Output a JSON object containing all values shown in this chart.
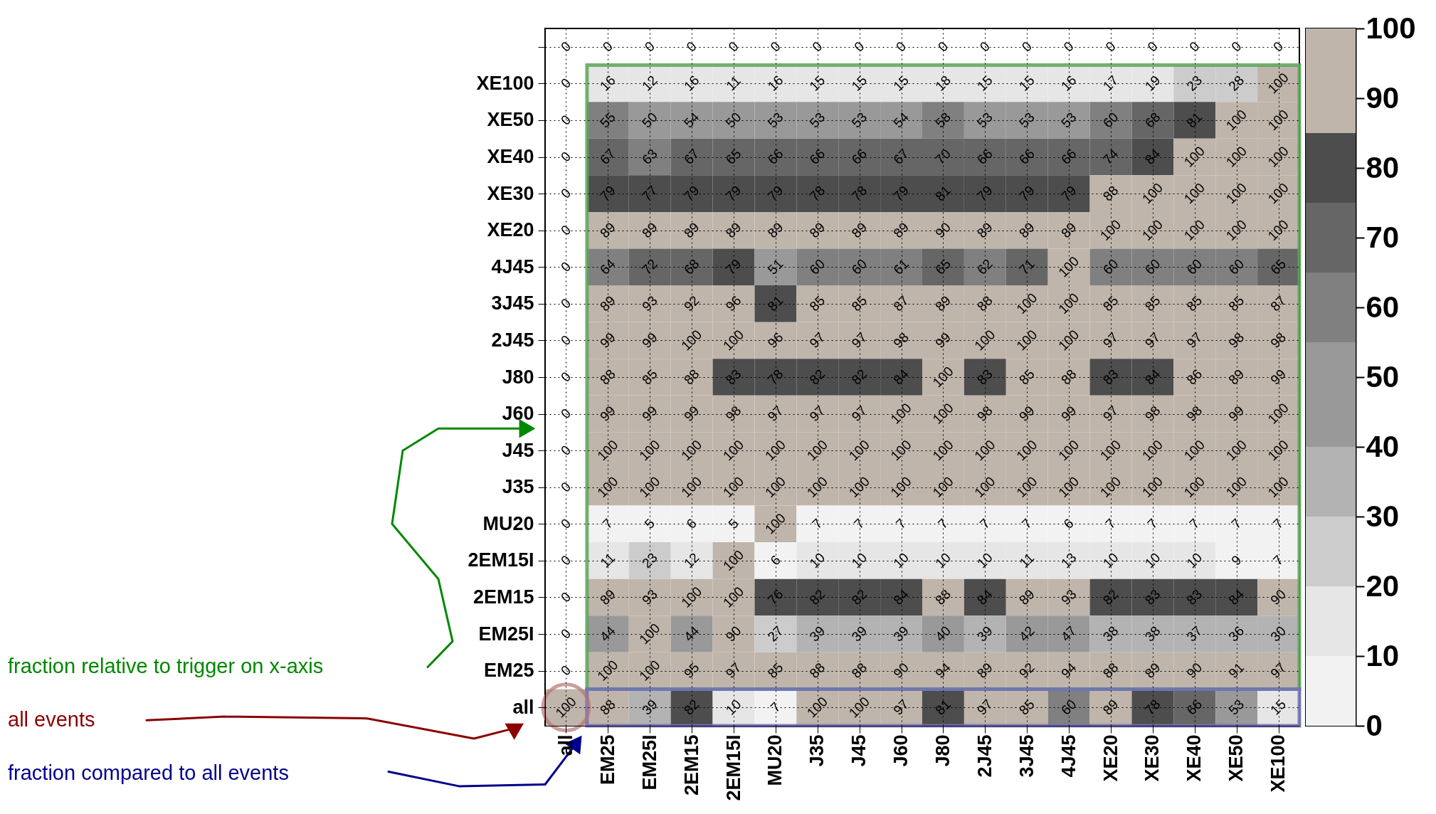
{
  "chart_data": {
    "type": "heatmap",
    "categories": [
      "all",
      "EM25",
      "EM25I",
      "2EM15",
      "2EM15I",
      "MU20",
      "J35",
      "J45",
      "J60",
      "J80",
      "2J45",
      "3J45",
      "4J45",
      "XE20",
      "XE30",
      "XE40",
      "XE50",
      "XE100"
    ],
    "y_categories": [
      null,
      "XE100",
      "XE50",
      "XE40",
      "XE30",
      "XE20",
      "4J45",
      "3J45",
      "2J45",
      "J80",
      "J60",
      "J45",
      "J35",
      "MU20",
      "2EM15I",
      "2EM15",
      "EM25I",
      "EM25",
      "all"
    ],
    "cells": [
      [
        0,
        0,
        0,
        0,
        0,
        0,
        0,
        0,
        0,
        0,
        0,
        0,
        0,
        0,
        0,
        0,
        0,
        0
      ],
      [
        0,
        16,
        12,
        16,
        11,
        16,
        15,
        15,
        15,
        18,
        15,
        15,
        16,
        17,
        19,
        23,
        28,
        100
      ],
      [
        0,
        55,
        50,
        54,
        50,
        53,
        53,
        53,
        54,
        58,
        53,
        53,
        53,
        60,
        68,
        81,
        100,
        100
      ],
      [
        0,
        67,
        63,
        67,
        65,
        66,
        66,
        66,
        67,
        70,
        66,
        66,
        66,
        74,
        84,
        100,
        100,
        100
      ],
      [
        0,
        79,
        77,
        79,
        79,
        79,
        78,
        78,
        79,
        81,
        79,
        79,
        79,
        88,
        100,
        100,
        100,
        100
      ],
      [
        0,
        89,
        89,
        89,
        89,
        89,
        89,
        89,
        89,
        90,
        89,
        89,
        89,
        100,
        100,
        100,
        100,
        100
      ],
      [
        0,
        64,
        72,
        68,
        79,
        51,
        60,
        60,
        61,
        65,
        62,
        71,
        100,
        60,
        60,
        60,
        60,
        65
      ],
      [
        0,
        89,
        93,
        92,
        96,
        81,
        85,
        85,
        87,
        89,
        88,
        100,
        100,
        85,
        85,
        85,
        85,
        87
      ],
      [
        0,
        99,
        99,
        100,
        100,
        96,
        97,
        97,
        98,
        99,
        100,
        100,
        100,
        97,
        97,
        97,
        98,
        98
      ],
      [
        0,
        88,
        85,
        88,
        83,
        78,
        82,
        82,
        84,
        100,
        83,
        85,
        88,
        83,
        84,
        86,
        89,
        99
      ],
      [
        0,
        99,
        99,
        99,
        98,
        97,
        97,
        97,
        100,
        100,
        98,
        99,
        99,
        97,
        98,
        98,
        99,
        100
      ],
      [
        0,
        100,
        100,
        100,
        100,
        100,
        100,
        100,
        100,
        100,
        100,
        100,
        100,
        100,
        100,
        100,
        100,
        100
      ],
      [
        0,
        100,
        100,
        100,
        100,
        100,
        100,
        100,
        100,
        100,
        100,
        100,
        100,
        100,
        100,
        100,
        100,
        100
      ],
      [
        0,
        7,
        5,
        6,
        5,
        100,
        7,
        7,
        7,
        7,
        7,
        7,
        6,
        7,
        7,
        7,
        7,
        7
      ],
      [
        0,
        11,
        23,
        12,
        100,
        6,
        10,
        10,
        10,
        10,
        10,
        11,
        13,
        10,
        10,
        10,
        9,
        7
      ],
      [
        0,
        89,
        93,
        100,
        100,
        76,
        82,
        82,
        84,
        88,
        84,
        89,
        93,
        82,
        83,
        83,
        84,
        90
      ],
      [
        0,
        44,
        100,
        44,
        90,
        27,
        39,
        39,
        39,
        40,
        39,
        42,
        47,
        38,
        38,
        37,
        36,
        30
      ],
      [
        0,
        100,
        100,
        95,
        97,
        85,
        88,
        88,
        90,
        94,
        89,
        92,
        94,
        88,
        89,
        90,
        91,
        97
      ],
      [
        100,
        88,
        39,
        82,
        10,
        7,
        100,
        100,
        97,
        81,
        97,
        85,
        60,
        89,
        78,
        66,
        53,
        15
      ]
    ],
    "clim": [
      0,
      100
    ],
    "cticks": [
      0,
      10,
      20,
      30,
      40,
      50,
      60,
      70,
      80,
      90,
      100
    ],
    "data_labels": true,
    "grid": true,
    "annotations": [
      "fraction relative to trigger on x-axis",
      "all events",
      "fraction compared to all events"
    ]
  }
}
